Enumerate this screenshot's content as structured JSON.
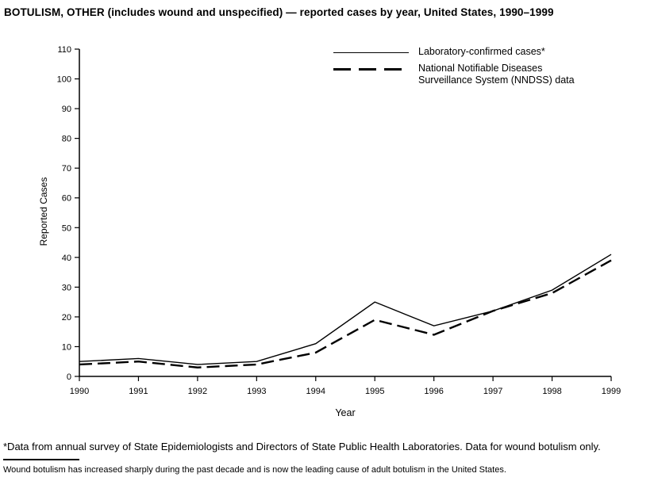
{
  "title": "BOTULISM, OTHER (includes wound and unspecified) — reported cases by year, United States, 1990–1999",
  "chart_data": {
    "type": "line",
    "categories": [
      "1990",
      "1991",
      "1992",
      "1993",
      "1994",
      "1995",
      "1996",
      "1997",
      "1998",
      "1999"
    ],
    "series": [
      {
        "name": "Laboratory-confirmed cases*",
        "dash": false,
        "line_width": 1.4,
        "values": [
          5,
          6,
          4,
          5,
          11,
          25,
          17,
          22,
          29,
          41
        ]
      },
      {
        "name": "National Notifiable Diseases Surveillance System (NNDSS) data",
        "dash": true,
        "line_width": 2.4,
        "values": [
          4,
          5,
          3,
          4,
          8,
          19,
          14,
          22,
          28,
          39
        ]
      }
    ],
    "xlabel": "Year",
    "ylabel": "Reported Cases",
    "ylim": [
      0,
      110
    ],
    "yticks": [
      0,
      10,
      20,
      30,
      40,
      50,
      60,
      70,
      80,
      90,
      100,
      110
    ],
    "line_color": "#000000",
    "grid": false,
    "legend_position": "top-right"
  },
  "footnotes": {
    "asterisk": "*Data from annual survey of State Epidemiologists and Directors of State Public Health Laboratories. Data for wound botulism only.",
    "note": "Wound botulism has increased sharply during the past decade and is now the leading cause of adult botulism in the United States."
  }
}
